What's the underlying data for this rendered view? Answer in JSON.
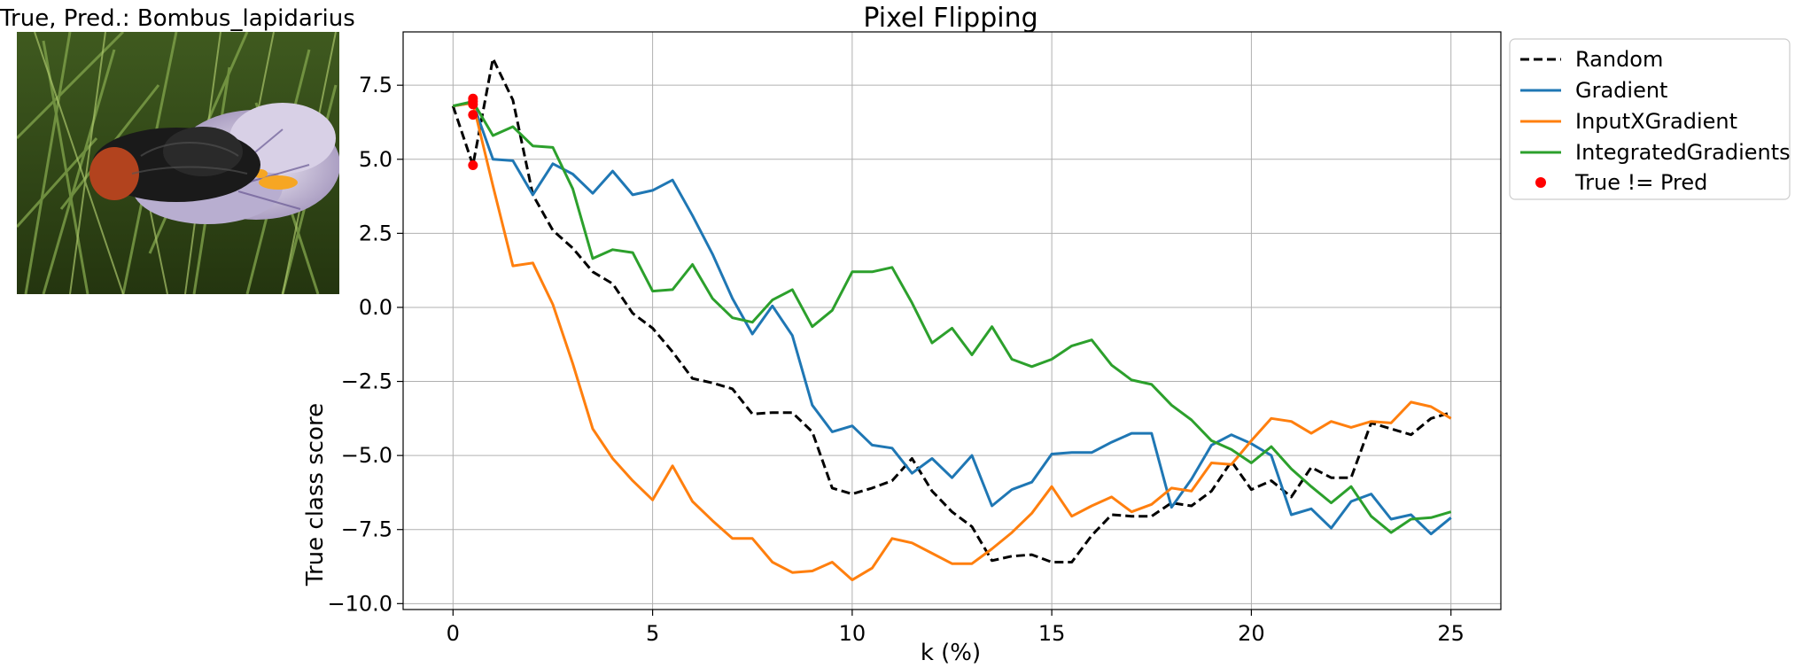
{
  "image_panel": {
    "title": "True, Pred.: Bombus_lapidarius"
  },
  "chart_data": {
    "type": "line",
    "title": "Pixel Flipping",
    "xlabel": "k (%)",
    "ylabel": "True class score",
    "xlim": [
      -1.25,
      26.25
    ],
    "ylim": [
      -10.2,
      9.3
    ],
    "xticks": [
      0,
      5,
      10,
      15,
      20,
      25
    ],
    "yticks": [
      -10.0,
      -7.5,
      -5.0,
      -2.5,
      0.0,
      2.5,
      5.0,
      7.5
    ],
    "xtick_labels": [
      "0",
      "5",
      "10",
      "15",
      "20",
      "25"
    ],
    "ytick_labels": [
      "−10.0",
      "−7.5",
      "−5.0",
      "−2.5",
      "0.0",
      "2.5",
      "5.0",
      "7.5"
    ],
    "grid": true,
    "legend_position": "outside-top-right",
    "x": [
      0,
      0.5,
      1,
      1.5,
      2,
      2.5,
      3,
      3.5,
      4,
      4.5,
      5,
      5.5,
      6,
      6.5,
      7,
      7.5,
      8,
      8.5,
      9,
      9.5,
      10,
      10.5,
      11,
      11.5,
      12,
      12.5,
      13,
      13.5,
      14,
      14.5,
      15,
      15.5,
      16,
      16.5,
      17,
      17.5,
      18,
      18.5,
      19,
      19.5,
      20,
      20.5,
      21,
      21.5,
      22,
      22.5,
      23,
      23.5,
      24,
      24.5,
      25
    ],
    "series": [
      {
        "name": "Random",
        "color": "#000000",
        "dash": true,
        "values": [
          6.8,
          4.8,
          8.4,
          7.0,
          3.8,
          2.6,
          2.0,
          1.2,
          0.8,
          -0.2,
          -0.7,
          -1.5,
          -2.4,
          -2.55,
          -2.75,
          -3.6,
          -3.55,
          -3.55,
          -4.2,
          -6.1,
          -6.3,
          -6.1,
          -5.85,
          -5.1,
          -6.2,
          -6.9,
          -7.4,
          -8.55,
          -8.4,
          -8.35,
          -8.6,
          -8.6,
          -7.7,
          -7.0,
          -7.05,
          -7.05,
          -6.6,
          -6.7,
          -6.2,
          -5.2,
          -6.15,
          -5.85,
          -6.4,
          -5.4,
          -5.75,
          -5.75,
          -3.9,
          -4.1,
          -4.3,
          -3.75,
          -3.55
        ]
      },
      {
        "name": "Gradient",
        "color": "#1f77b4",
        "dash": false,
        "values": [
          6.8,
          6.9,
          5.0,
          4.95,
          3.8,
          4.85,
          4.5,
          3.85,
          4.6,
          3.8,
          3.95,
          4.3,
          3.1,
          1.8,
          0.3,
          -0.9,
          0.05,
          -0.95,
          -3.3,
          -4.2,
          -4.0,
          -4.65,
          -4.75,
          -5.6,
          -5.1,
          -5.75,
          -5.0,
          -6.7,
          -6.15,
          -5.9,
          -4.95,
          -4.9,
          -4.9,
          -4.55,
          -4.25,
          -4.25,
          -6.75,
          -5.8,
          -4.65,
          -4.3,
          -4.6,
          -5.0,
          -7.0,
          -6.8,
          -7.45,
          -6.55,
          -6.3,
          -7.15,
          -7.0,
          -7.65,
          -7.1
        ]
      },
      {
        "name": "InputXGradient",
        "color": "#ff7f0e",
        "dash": false,
        "values": [
          6.8,
          6.9,
          4.1,
          1.4,
          1.5,
          0.1,
          -1.9,
          -4.1,
          -5.1,
          -5.85,
          -6.5,
          -5.35,
          -6.55,
          -7.2,
          -7.8,
          -7.8,
          -8.6,
          -8.95,
          -8.9,
          -8.6,
          -9.2,
          -8.8,
          -7.8,
          -7.95,
          -8.3,
          -8.65,
          -8.65,
          -8.15,
          -7.6,
          -6.95,
          -6.05,
          -7.05,
          -6.7,
          -6.4,
          -6.9,
          -6.65,
          -6.1,
          -6.2,
          -5.25,
          -5.3,
          -4.5,
          -3.75,
          -3.85,
          -4.25,
          -3.85,
          -4.05,
          -3.85,
          -3.9,
          -3.2,
          -3.35,
          -3.75
        ]
      },
      {
        "name": "IntegratedGradients",
        "color": "#2ca02c",
        "dash": false,
        "values": [
          6.8,
          6.95,
          5.8,
          6.1,
          5.45,
          5.4,
          4.0,
          1.65,
          1.95,
          1.85,
          0.55,
          0.6,
          1.45,
          0.3,
          -0.35,
          -0.5,
          0.25,
          0.6,
          -0.65,
          -0.1,
          1.2,
          1.2,
          1.35,
          0.15,
          -1.2,
          -0.7,
          -1.6,
          -0.65,
          -1.75,
          -2.0,
          -1.75,
          -1.3,
          -1.1,
          -1.95,
          -2.45,
          -2.6,
          -3.3,
          -3.8,
          -4.5,
          -4.8,
          -5.25,
          -4.7,
          -5.45,
          -6.05,
          -6.6,
          -6.05,
          -7.05,
          -7.6,
          -7.15,
          -7.1,
          -6.9
        ]
      }
    ],
    "markers": {
      "name": "True != Pred",
      "color": "#ff0000",
      "points": [
        [
          0.5,
          4.8
        ],
        [
          0.5,
          6.5
        ],
        [
          0.5,
          6.85
        ],
        [
          0.5,
          6.95
        ],
        [
          0.5,
          7.05
        ]
      ]
    }
  }
}
